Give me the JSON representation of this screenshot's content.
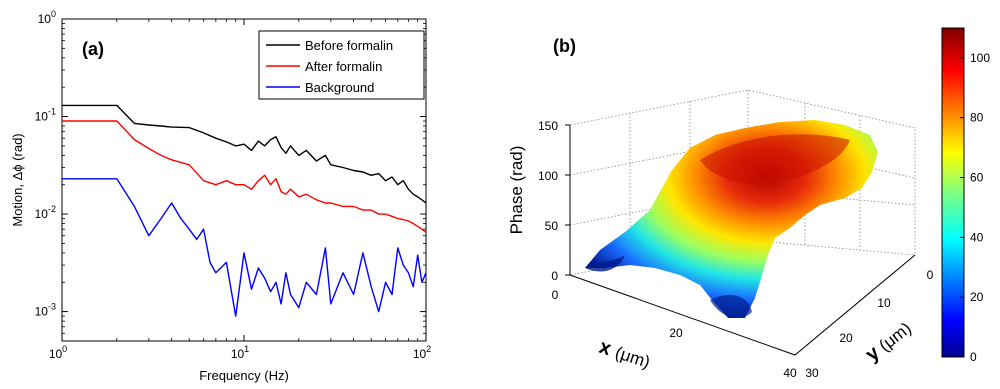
{
  "chart_data": [
    {
      "type": "line",
      "panel_label": "(a)",
      "xscale": "log",
      "yscale": "log",
      "xlabel": "Frequency (Hz)",
      "ylabel": "Motion, Δϕ (rad)",
      "xlim": [
        1,
        100
      ],
      "ylim": [
        0.0005,
        1
      ],
      "x_ticks": [
        {
          "base": "10",
          "exp": "0",
          "value": 1
        },
        {
          "base": "10",
          "exp": "1",
          "value": 10
        },
        {
          "base": "10",
          "exp": "2",
          "value": 100
        }
      ],
      "y_ticks": [
        {
          "base": "10",
          "exp": "-3",
          "value": 0.001
        },
        {
          "base": "10",
          "exp": "-2",
          "value": 0.01
        },
        {
          "base": "10",
          "exp": "-1",
          "value": 0.1
        },
        {
          "base": "10",
          "exp": "0",
          "value": 1
        }
      ],
      "legend_position": "top-right",
      "series": [
        {
          "name": "Before formalin",
          "color": "#000000",
          "x": [
            1,
            2,
            2.5,
            3,
            3.5,
            4,
            5,
            6,
            7,
            8,
            9,
            10,
            11,
            12,
            13,
            14,
            15,
            16,
            17,
            18,
            20,
            22,
            25,
            28,
            30,
            35,
            40,
            45,
            50,
            55,
            60,
            65,
            70,
            75,
            80,
            85,
            90,
            95,
            100
          ],
          "values": [
            0.13,
            0.13,
            0.085,
            0.082,
            0.08,
            0.078,
            0.077,
            0.068,
            0.06,
            0.055,
            0.05,
            0.052,
            0.045,
            0.056,
            0.05,
            0.058,
            0.062,
            0.048,
            0.042,
            0.05,
            0.04,
            0.045,
            0.035,
            0.04,
            0.032,
            0.03,
            0.028,
            0.027,
            0.025,
            0.026,
            0.022,
            0.024,
            0.02,
            0.022,
            0.018,
            0.016,
            0.015,
            0.014,
            0.013
          ]
        },
        {
          "name": "After formalin",
          "color": "#ff0000",
          "x": [
            1,
            2,
            2.5,
            3,
            3.5,
            4,
            5,
            6,
            7,
            8,
            9,
            10,
            11,
            12,
            13,
            14,
            15,
            16,
            17,
            18,
            20,
            22,
            25,
            28,
            30,
            35,
            40,
            45,
            50,
            55,
            60,
            65,
            70,
            75,
            80,
            85,
            90,
            95,
            100
          ],
          "values": [
            0.09,
            0.09,
            0.058,
            0.047,
            0.04,
            0.036,
            0.032,
            0.022,
            0.02,
            0.022,
            0.02,
            0.02,
            0.018,
            0.022,
            0.025,
            0.02,
            0.023,
            0.017,
            0.016,
            0.018,
            0.015,
            0.016,
            0.014,
            0.013,
            0.013,
            0.012,
            0.012,
            0.011,
            0.011,
            0.01,
            0.01,
            0.0095,
            0.009,
            0.0088,
            0.0085,
            0.008,
            0.0075,
            0.007,
            0.0065
          ]
        },
        {
          "name": "Background",
          "color": "#0000ff",
          "x": [
            1,
            2,
            2.5,
            3,
            3.5,
            4,
            4.5,
            5,
            5.5,
            6,
            6.5,
            7,
            8,
            9,
            10,
            11,
            12,
            13,
            14,
            15,
            16,
            17,
            18,
            20,
            22,
            25,
            28,
            30,
            35,
            40,
            45,
            50,
            55,
            60,
            65,
            70,
            75,
            80,
            85,
            90,
            95,
            100
          ],
          "values": [
            0.023,
            0.023,
            0.012,
            0.006,
            0.009,
            0.013,
            0.009,
            0.007,
            0.0055,
            0.007,
            0.0032,
            0.0025,
            0.0032,
            0.0009,
            0.004,
            0.0017,
            0.0028,
            0.0022,
            0.0016,
            0.002,
            0.0012,
            0.0025,
            0.0015,
            0.0011,
            0.002,
            0.0015,
            0.0045,
            0.0012,
            0.0025,
            0.0015,
            0.004,
            0.0018,
            0.001,
            0.002,
            0.0015,
            0.0045,
            0.003,
            0.0025,
            0.0018,
            0.0038,
            0.002,
            0.0025
          ]
        }
      ]
    },
    {
      "type": "surface3d",
      "panel_label": "(b)",
      "zlabel": "Phase (rad)",
      "xlabel_symbol": "x",
      "xlabel_unit": "(μm)",
      "ylabel_symbol": "y",
      "ylabel_unit": "(μm)",
      "z_ticks": [
        "0",
        "50",
        "100",
        "150"
      ],
      "x_ticks": [
        "0",
        "20",
        "40"
      ],
      "y_ticks": [
        "0",
        "10",
        "20",
        "30"
      ],
      "zlim": [
        0,
        150
      ],
      "colorbar": {
        "ticks": [
          "0",
          "20",
          "40",
          "60",
          "80",
          "100"
        ],
        "range": [
          0,
          110
        ],
        "colormap": "jet"
      }
    }
  ]
}
